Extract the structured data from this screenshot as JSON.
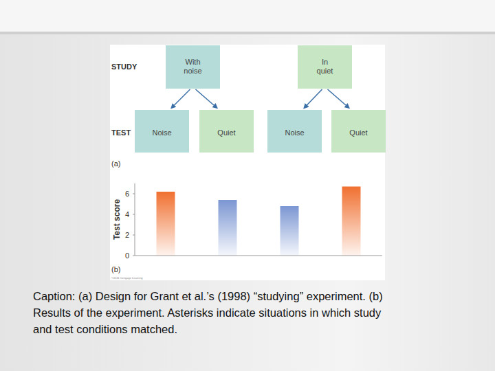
{
  "diagram": {
    "study_label": "STUDY",
    "test_label": "TEST",
    "study": [
      {
        "label": "With noise",
        "kind": "noise"
      },
      {
        "label": "In quiet",
        "kind": "quiet"
      }
    ],
    "test": [
      {
        "label": "Noise",
        "kind": "noise"
      },
      {
        "label": "Quiet",
        "kind": "quiet"
      },
      {
        "label": "Noise",
        "kind": "noise"
      },
      {
        "label": "Quiet",
        "kind": "quiet"
      }
    ],
    "panel_label": "(a)"
  },
  "chart_data": {
    "type": "bar",
    "y_label": "Test score",
    "annotation": "(b)",
    "credit": "©2011 Cengage Learning",
    "categories": [
      null,
      null,
      null,
      null
    ],
    "values": [
      6.2,
      5.4,
      4.8,
      6.7
    ],
    "colors": [
      "#f07030",
      "#7b96d2",
      "#7b96d2",
      "#f07030"
    ],
    "ylim": [
      0,
      7
    ],
    "yticks": [
      0,
      2,
      4,
      6
    ],
    "grid": false,
    "tick_labels": "y"
  },
  "caption_lines": [
    "Caption: (a) Design for Grant et al.’s (1998) “studying” experiment. (b)",
    "Results of the experiment. Asterisks indicate situations in which study",
    "and test conditions matched."
  ]
}
